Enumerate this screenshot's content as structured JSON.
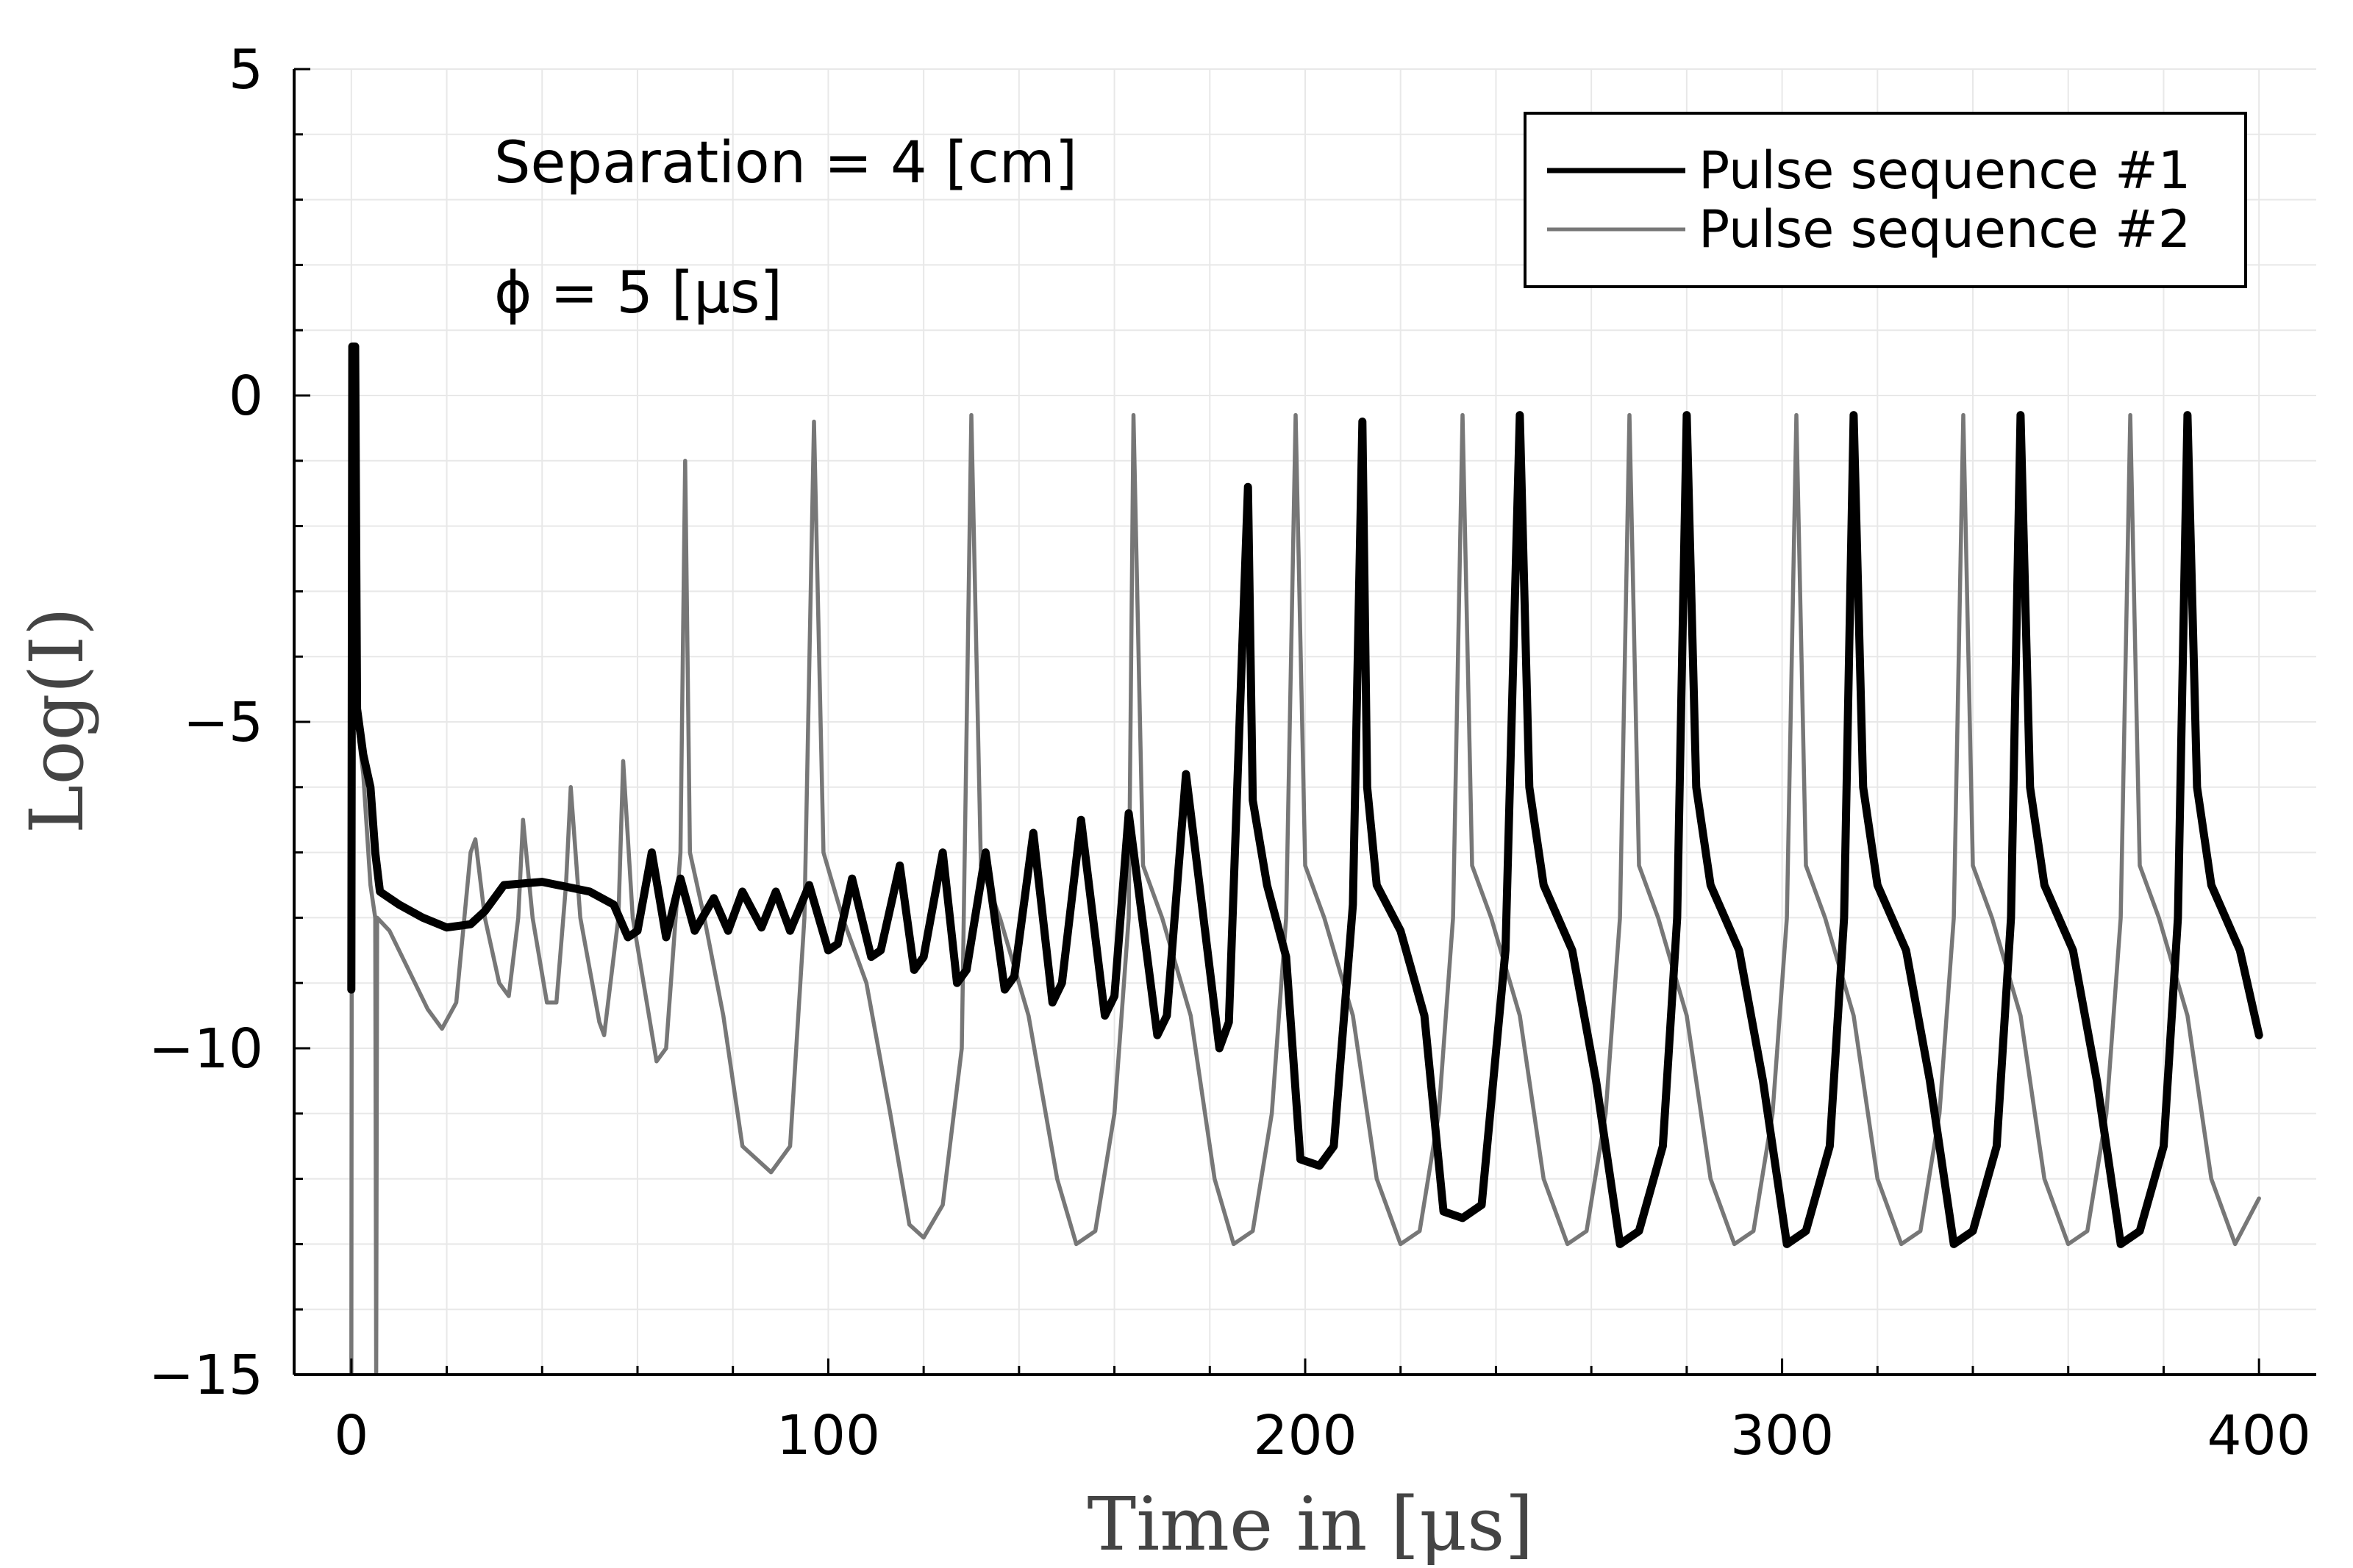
{
  "chart_data": {
    "type": "line",
    "title": "",
    "xlabel": "Time in [μs]",
    "ylabel": "Log(I)",
    "xlim": [
      -12,
      412
    ],
    "ylim": [
      -15,
      5
    ],
    "xticks": [
      0,
      100,
      200,
      300,
      400
    ],
    "xtick_labels": [
      "0",
      "100",
      "200",
      "300",
      "400"
    ],
    "yticks": [
      -15,
      -10,
      -5,
      0,
      5
    ],
    "ytick_labels": [
      "−15",
      "−10",
      "−5",
      "0",
      "5"
    ],
    "grid": true,
    "legend_position": "top-right",
    "annotations": [
      "Separation = 4 [cm]",
      "ϕ = 5 [μs]"
    ],
    "series": [
      {
        "name": "Pulse sequence #1",
        "color": "#000000",
        "style": "thick",
        "points": [
          [
            0,
            -9.1
          ],
          [
            0.2,
            0.75
          ],
          [
            0.8,
            0.75
          ],
          [
            1.2,
            -4.8
          ],
          [
            2.5,
            -5.5
          ],
          [
            4,
            -6.0
          ],
          [
            5,
            -7.0
          ],
          [
            6,
            -7.6
          ],
          [
            10,
            -7.8
          ],
          [
            15,
            -8.0
          ],
          [
            20,
            -8.15
          ],
          [
            25,
            -8.1
          ],
          [
            28,
            -7.9
          ],
          [
            32,
            -7.5
          ],
          [
            40,
            -7.45
          ],
          [
            50,
            -7.6
          ],
          [
            55,
            -7.8
          ],
          [
            58,
            -8.3
          ],
          [
            60,
            -8.2
          ],
          [
            63,
            -7.0
          ],
          [
            66,
            -8.3
          ],
          [
            69,
            -7.4
          ],
          [
            72,
            -8.2
          ],
          [
            76,
            -7.7
          ],
          [
            79,
            -8.2
          ],
          [
            82,
            -7.6
          ],
          [
            86,
            -8.15
          ],
          [
            89,
            -7.6
          ],
          [
            92,
            -8.2
          ],
          [
            96,
            -7.5
          ],
          [
            100,
            -8.5
          ],
          [
            102,
            -8.4
          ],
          [
            105,
            -7.4
          ],
          [
            109,
            -8.6
          ],
          [
            111,
            -8.5
          ],
          [
            115,
            -7.2
          ],
          [
            118,
            -8.8
          ],
          [
            120,
            -8.6
          ],
          [
            124,
            -7.0
          ],
          [
            127,
            -9.0
          ],
          [
            129,
            -8.8
          ],
          [
            133,
            -7.0
          ],
          [
            137,
            -9.1
          ],
          [
            139,
            -8.9
          ],
          [
            143,
            -6.7
          ],
          [
            147,
            -9.3
          ],
          [
            149,
            -9.0
          ],
          [
            153,
            -6.5
          ],
          [
            158,
            -9.5
          ],
          [
            160,
            -9.2
          ],
          [
            163,
            -6.4
          ],
          [
            169,
            -9.8
          ],
          [
            171,
            -9.5
          ],
          [
            175,
            -5.8
          ],
          [
            182,
            -10.0
          ],
          [
            184,
            -9.6
          ],
          [
            188,
            -1.4
          ],
          [
            189,
            -6.2
          ],
          [
            192,
            -7.5
          ],
          [
            196,
            -8.6
          ],
          [
            199,
            -11.7
          ],
          [
            203,
            -11.8
          ],
          [
            206,
            -11.5
          ],
          [
            210,
            -7.8
          ],
          [
            212,
            -0.4
          ],
          [
            213,
            -6.0
          ],
          [
            215,
            -7.5
          ],
          [
            220,
            -8.2
          ],
          [
            225,
            -9.5
          ],
          [
            229,
            -12.5
          ],
          [
            233,
            -12.6
          ],
          [
            237,
            -12.4
          ],
          [
            242,
            -8.5
          ],
          [
            245,
            -0.3
          ],
          [
            247,
            -6.0
          ],
          [
            250,
            -7.5
          ],
          [
            256,
            -8.5
          ],
          [
            261,
            -10.5
          ],
          [
            266,
            -13.0
          ],
          [
            270,
            -12.8
          ],
          [
            275,
            -11.5
          ],
          [
            278,
            -8.0
          ],
          [
            280,
            -0.3
          ],
          [
            282,
            -6.0
          ],
          [
            285,
            -7.5
          ],
          [
            291,
            -8.5
          ],
          [
            296,
            -10.5
          ],
          [
            301,
            -13.0
          ],
          [
            305,
            -12.8
          ],
          [
            310,
            -11.5
          ],
          [
            313,
            -8.0
          ],
          [
            315,
            -0.3
          ],
          [
            317,
            -6.0
          ],
          [
            320,
            -7.5
          ],
          [
            326,
            -8.5
          ],
          [
            331,
            -10.5
          ],
          [
            336,
            -13.0
          ],
          [
            340,
            -12.8
          ],
          [
            345,
            -11.5
          ],
          [
            348,
            -8.0
          ],
          [
            350,
            -0.3
          ],
          [
            352,
            -6.0
          ],
          [
            355,
            -7.5
          ],
          [
            361,
            -8.5
          ],
          [
            366,
            -10.5
          ],
          [
            371,
            -13.0
          ],
          [
            375,
            -12.8
          ],
          [
            380,
            -11.5
          ],
          [
            383,
            -8.0
          ],
          [
            385,
            -0.3
          ],
          [
            387,
            -6.0
          ],
          [
            390,
            -7.5
          ],
          [
            396,
            -8.5
          ],
          [
            400,
            -9.8
          ]
        ]
      },
      {
        "name": "Pulse sequence #2",
        "color": "#777777",
        "style": "thin",
        "points": [
          [
            0,
            -15
          ],
          [
            0.2,
            0.7
          ],
          [
            0.8,
            0.7
          ],
          [
            1.2,
            -5.0
          ],
          [
            2.5,
            -5.8
          ],
          [
            4,
            -7.5
          ],
          [
            5,
            -8.0
          ],
          [
            5.2,
            -15
          ],
          [
            5.4,
            -8.0
          ],
          [
            8,
            -8.2
          ],
          [
            12,
            -8.8
          ],
          [
            16,
            -9.4
          ],
          [
            19,
            -9.7
          ],
          [
            22,
            -9.3
          ],
          [
            25,
            -7.0
          ],
          [
            26,
            -6.8
          ],
          [
            28,
            -8.0
          ],
          [
            31,
            -9.0
          ],
          [
            33,
            -9.2
          ],
          [
            35,
            -8.0
          ],
          [
            36,
            -6.5
          ],
          [
            38,
            -8.0
          ],
          [
            41,
            -9.3
          ],
          [
            43,
            -9.3
          ],
          [
            45,
            -7.5
          ],
          [
            46,
            -6.0
          ],
          [
            48,
            -8.0
          ],
          [
            52,
            -9.6
          ],
          [
            53,
            -9.8
          ],
          [
            56,
            -8.0
          ],
          [
            57,
            -5.6
          ],
          [
            59,
            -8.0
          ],
          [
            64,
            -10.2
          ],
          [
            66,
            -10.0
          ],
          [
            69,
            -7.0
          ],
          [
            70,
            -1.0
          ],
          [
            71,
            -7.0
          ],
          [
            74,
            -8.0
          ],
          [
            78,
            -9.5
          ],
          [
            82,
            -11.5
          ],
          [
            88,
            -11.9
          ],
          [
            92,
            -11.5
          ],
          [
            95,
            -8.0
          ],
          [
            97,
            -0.4
          ],
          [
            99,
            -7.0
          ],
          [
            103,
            -8.0
          ],
          [
            108,
            -9.0
          ],
          [
            113,
            -11.0
          ],
          [
            117,
            -12.7
          ],
          [
            120,
            -12.9
          ],
          [
            124,
            -12.4
          ],
          [
            128,
            -10.0
          ],
          [
            130,
            -0.3
          ],
          [
            132,
            -7.2
          ],
          [
            136,
            -8.0
          ],
          [
            142,
            -9.5
          ],
          [
            148,
            -12.0
          ],
          [
            152,
            -13.0
          ],
          [
            156,
            -12.8
          ],
          [
            160,
            -11.0
          ],
          [
            163,
            -8.0
          ],
          [
            164,
            -0.3
          ],
          [
            166,
            -7.2
          ],
          [
            170,
            -8.0
          ],
          [
            176,
            -9.5
          ],
          [
            181,
            -12.0
          ],
          [
            185,
            -13.0
          ],
          [
            189,
            -12.8
          ],
          [
            193,
            -11.0
          ],
          [
            196,
            -8.0
          ],
          [
            198,
            -0.3
          ],
          [
            200,
            -7.2
          ],
          [
            204,
            -8.0
          ],
          [
            210,
            -9.5
          ],
          [
            215,
            -12.0
          ],
          [
            220,
            -13.0
          ],
          [
            224,
            -12.8
          ],
          [
            228,
            -11.0
          ],
          [
            231,
            -8.0
          ],
          [
            233,
            -0.3
          ],
          [
            235,
            -7.2
          ],
          [
            239,
            -8.0
          ],
          [
            245,
            -9.5
          ],
          [
            250,
            -12.0
          ],
          [
            255,
            -13.0
          ],
          [
            259,
            -12.8
          ],
          [
            263,
            -11.0
          ],
          [
            266,
            -8.0
          ],
          [
            268,
            -0.3
          ],
          [
            270,
            -7.2
          ],
          [
            274,
            -8.0
          ],
          [
            280,
            -9.5
          ],
          [
            285,
            -12.0
          ],
          [
            290,
            -13.0
          ],
          [
            294,
            -12.8
          ],
          [
            298,
            -11.0
          ],
          [
            301,
            -8.0
          ],
          [
            303,
            -0.3
          ],
          [
            305,
            -7.2
          ],
          [
            309,
            -8.0
          ],
          [
            315,
            -9.5
          ],
          [
            320,
            -12.0
          ],
          [
            325,
            -13.0
          ],
          [
            329,
            -12.8
          ],
          [
            333,
            -11.0
          ],
          [
            336,
            -8.0
          ],
          [
            338,
            -0.3
          ],
          [
            340,
            -7.2
          ],
          [
            344,
            -8.0
          ],
          [
            350,
            -9.5
          ],
          [
            355,
            -12.0
          ],
          [
            360,
            -13.0
          ],
          [
            364,
            -12.8
          ],
          [
            368,
            -11.0
          ],
          [
            371,
            -8.0
          ],
          [
            373,
            -0.3
          ],
          [
            375,
            -7.2
          ],
          [
            379,
            -8.0
          ],
          [
            385,
            -9.5
          ],
          [
            390,
            -12.0
          ],
          [
            395,
            -13.0
          ],
          [
            400,
            -12.3
          ]
        ]
      }
    ]
  }
}
